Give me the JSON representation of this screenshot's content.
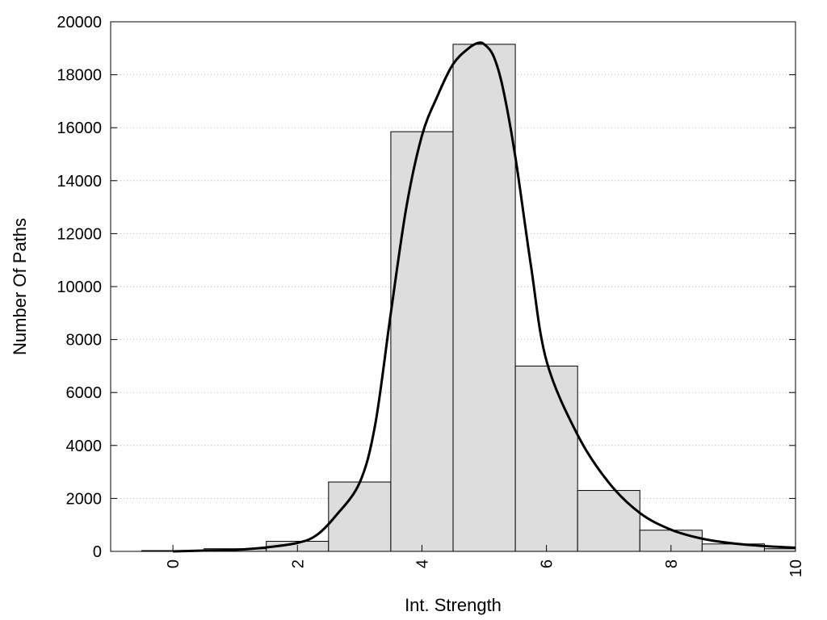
{
  "chart_data": {
    "type": "bar",
    "xlabel": "Int. Strength",
    "ylabel": "Number Of Paths",
    "xlim": [
      -1,
      10
    ],
    "ylim": [
      0,
      20000
    ],
    "x_ticks": [
      0,
      2,
      4,
      6,
      8,
      10
    ],
    "y_ticks": [
      0,
      2000,
      4000,
      6000,
      8000,
      10000,
      12000,
      14000,
      16000,
      18000,
      20000
    ],
    "x_tick_labels": [
      "0",
      "2",
      "4",
      "6",
      "8",
      "10"
    ],
    "y_tick_labels": [
      "0",
      "2000",
      "4000",
      "6000",
      "8000",
      "10000",
      "12000",
      "14000",
      "16000",
      "18000",
      "20000"
    ],
    "grid": "horizontal-dotted",
    "bar_color": "#dddddd",
    "bin_width": 1,
    "bins": [
      {
        "x": 0,
        "value": 30
      },
      {
        "x": 1,
        "value": 100
      },
      {
        "x": 2,
        "value": 380
      },
      {
        "x": 3,
        "value": 2620
      },
      {
        "x": 4,
        "value": 15850
      },
      {
        "x": 5,
        "value": 19150
      },
      {
        "x": 6,
        "value": 7000
      },
      {
        "x": 7,
        "value": 2300
      },
      {
        "x": 8,
        "value": 800
      },
      {
        "x": 9,
        "value": 280
      },
      {
        "x": 10,
        "value": 100
      }
    ],
    "curve": {
      "x": [
        0,
        0.5,
        1,
        1.5,
        2,
        2.3,
        2.6,
        3,
        3.25,
        3.5,
        3.75,
        4,
        4.25,
        4.5,
        4.75,
        4.9,
        5,
        5.15,
        5.3,
        5.5,
        5.75,
        6,
        6.5,
        7,
        7.5,
        8,
        8.5,
        9,
        9.5,
        10
      ],
      "y": [
        0,
        30,
        60,
        150,
        320,
        600,
        1300,
        2600,
        4800,
        9000,
        13000,
        15700,
        17200,
        18400,
        19000,
        19200,
        19150,
        18700,
        17500,
        14900,
        10800,
        7200,
        4400,
        2600,
        1450,
        820,
        480,
        300,
        200,
        140
      ]
    }
  }
}
